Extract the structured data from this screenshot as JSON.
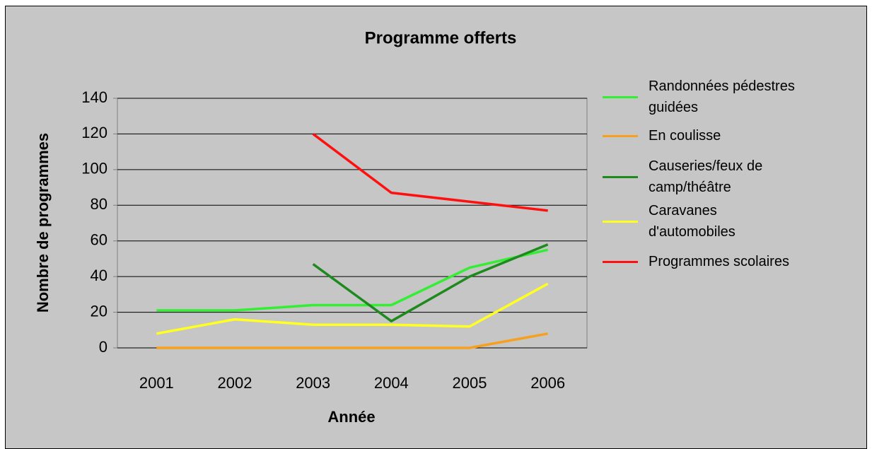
{
  "chart_data": {
    "type": "line",
    "title": "Programme offerts",
    "x_label": "Année",
    "y_label": "Nombre de programmes",
    "categories": [
      "2001",
      "2002",
      "2003",
      "2004",
      "2005",
      "2006"
    ],
    "series": [
      {
        "name": "Randonnées pédestres guidées",
        "color": "#33ee33",
        "values": [
          21,
          21,
          24,
          24,
          45,
          55
        ]
      },
      {
        "name": "En coulisse",
        "color": "#f7a020",
        "values": [
          0,
          0,
          0,
          0,
          0,
          8
        ]
      },
      {
        "name": "Causeries/feux de camp/théâtre",
        "color": "#1e8a1e",
        "values": [
          null,
          null,
          47,
          15,
          40,
          58
        ]
      },
      {
        "name": "Caravanes d'automobiles",
        "color": "#ffff22",
        "values": [
          8,
          16,
          13,
          13,
          12,
          36
        ]
      },
      {
        "name": "Programmes scolaires",
        "color": "#ff1010",
        "values": [
          null,
          null,
          120,
          87,
          82,
          77
        ]
      }
    ],
    "ylim": [
      0,
      140
    ],
    "yticks": [
      0,
      20,
      40,
      60,
      80,
      100,
      120,
      140
    ],
    "grid": true,
    "legend": "right"
  }
}
